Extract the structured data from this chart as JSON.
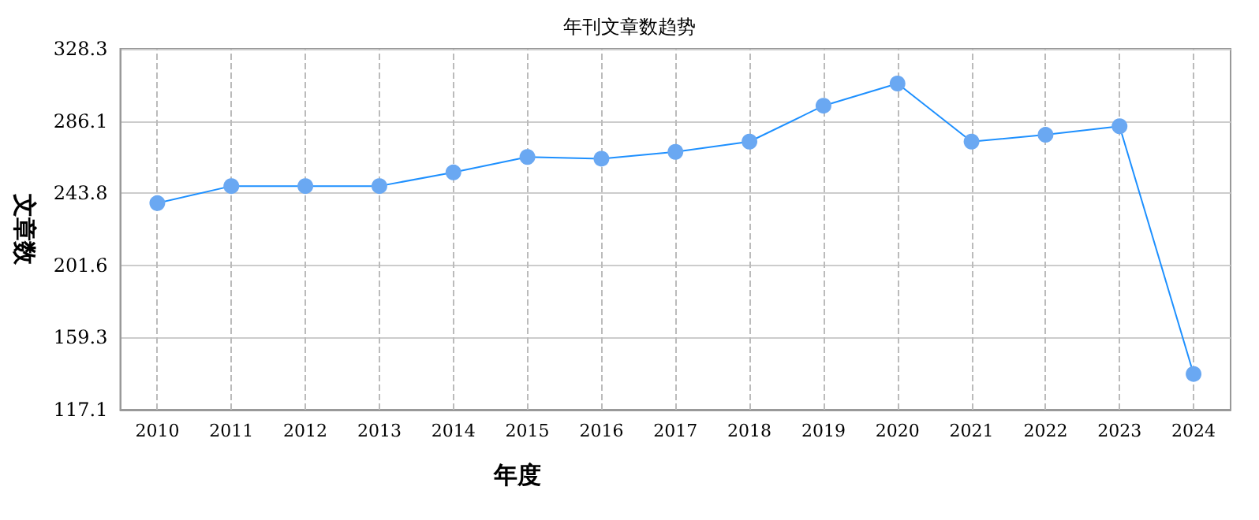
{
  "chart_data": {
    "type": "line",
    "title": "年刊文章数趋势",
    "xlabel": "年度",
    "ylabel": "文章数",
    "categories": [
      "2010",
      "2011",
      "2012",
      "2013",
      "2014",
      "2015",
      "2016",
      "2017",
      "2018",
      "2019",
      "2020",
      "2021",
      "2022",
      "2023",
      "2024"
    ],
    "series": [
      {
        "color": "#1e90ff",
        "values": [
          238,
          248,
          248,
          248,
          256,
          265,
          264,
          268,
          274,
          295,
          308,
          274,
          278,
          283,
          138
        ]
      }
    ],
    "ylim": [
      117.1,
      328.3
    ],
    "yticks": [
      117.1,
      159.3,
      201.6,
      243.8,
      286.1,
      328.3
    ],
    "grid": true,
    "marker": "circle",
    "line_style": "solid"
  }
}
